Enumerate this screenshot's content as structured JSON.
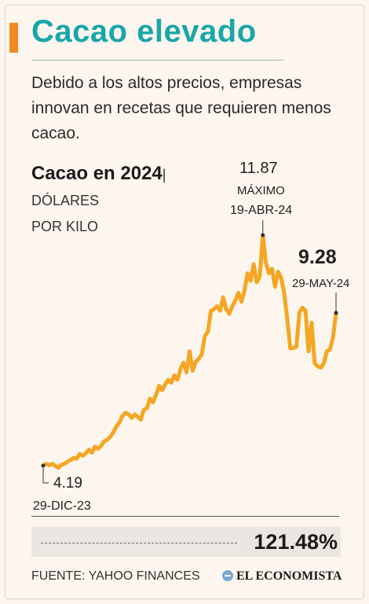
{
  "header": {
    "title": "Cacao elevado",
    "subtitle": "Debido a los altos precios, empresas innovan en recetas que requieren menos cacao."
  },
  "chart_data": {
    "type": "line",
    "title_main": "Cacao en 2024",
    "unit_inline": "| DÓLARES",
    "unit_line2": "POR KILO",
    "color": "#f5a623",
    "series": [
      {
        "values": [
          4.19,
          4.25,
          4.2,
          4.25,
          4.18,
          4.12,
          4.22,
          4.25,
          4.32,
          4.38,
          4.45,
          4.42,
          4.58,
          4.52,
          4.6,
          4.72,
          4.62,
          4.82,
          4.75,
          4.85,
          5.0,
          5.05,
          5.15,
          5.3,
          5.5,
          5.62,
          5.85,
          5.95,
          5.9,
          5.78,
          5.9,
          5.82,
          5.72,
          6.05,
          6.1,
          6.42,
          6.3,
          6.55,
          6.85,
          6.7,
          6.9,
          7.05,
          6.95,
          7.2,
          7.05,
          7.4,
          7.62,
          7.3,
          8.0,
          7.35,
          7.65,
          7.75,
          7.9,
          8.5,
          8.65,
          9.35,
          9.4,
          9.5,
          9.35,
          9.8,
          9.4,
          9.25,
          9.5,
          9.7,
          9.95,
          9.65,
          10.02,
          10.6,
          10.35,
          10.9,
          10.3,
          10.5,
          11.87,
          10.95,
          10.6,
          10.75,
          10.15,
          10.65,
          10.45,
          9.95,
          9.1,
          8.1,
          8.1,
          8.15,
          9.3,
          9.45,
          9.35,
          8.0,
          8.95,
          7.6,
          7.5,
          7.45,
          7.6,
          8.0,
          8.05,
          8.45,
          9.28
        ]
      }
    ],
    "x_start": "29-DIC-23",
    "x_end": "29-MAY-24",
    "ylim": [
      2.5,
      12.5
    ],
    "annotations": {
      "first_value": "4.19",
      "first_date": "29-DIC-23",
      "max_value": "11.87",
      "max_label": "MÁXIMO",
      "max_date": "19-ABR-24",
      "last_value": "9.28",
      "last_date": "29-MAY-24"
    },
    "grid": false
  },
  "summary": {
    "change_pct": "121.48%"
  },
  "footer": {
    "source": "FUENTE: YAHOO FINANCES",
    "brand": "EL ECONOMISTA",
    "brand_icon": "globe-icon"
  }
}
